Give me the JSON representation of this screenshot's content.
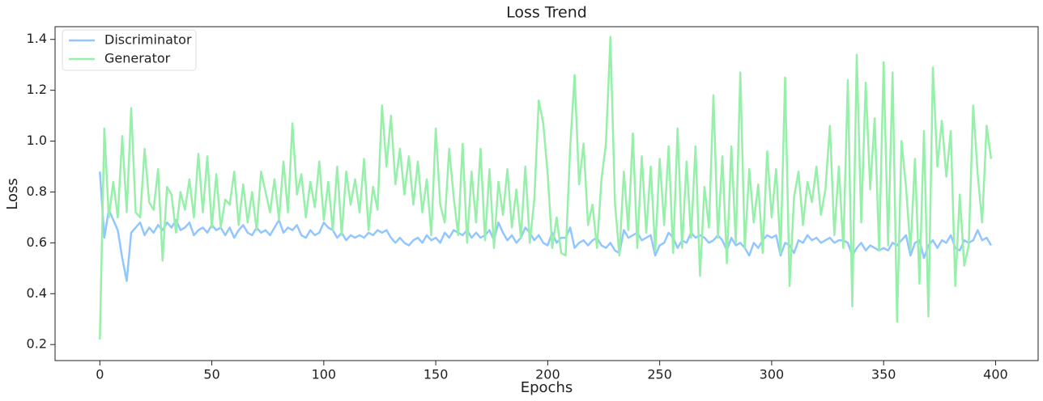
{
  "chart_data": {
    "type": "line",
    "title": "Loss Trend",
    "x_label": "Epochs",
    "y_label": "Loss",
    "x": [
      0,
      2,
      4,
      6,
      8,
      10,
      12,
      14,
      16,
      18,
      20,
      22,
      24,
      26,
      28,
      30,
      32,
      34,
      36,
      38,
      40,
      42,
      44,
      46,
      48,
      50,
      52,
      54,
      56,
      58,
      60,
      62,
      64,
      66,
      68,
      70,
      72,
      74,
      76,
      78,
      80,
      82,
      84,
      86,
      88,
      90,
      92,
      94,
      96,
      98,
      100,
      102,
      104,
      106,
      108,
      110,
      112,
      114,
      116,
      118,
      120,
      122,
      124,
      126,
      128,
      130,
      132,
      134,
      136,
      138,
      140,
      142,
      144,
      146,
      148,
      150,
      152,
      154,
      156,
      158,
      160,
      162,
      164,
      166,
      168,
      170,
      172,
      174,
      176,
      178,
      180,
      182,
      184,
      186,
      188,
      190,
      192,
      194,
      196,
      198,
      200,
      202,
      204,
      206,
      208,
      210,
      212,
      214,
      216,
      218,
      220,
      222,
      224,
      226,
      228,
      230,
      232,
      234,
      236,
      238,
      240,
      242,
      244,
      246,
      248,
      250,
      252,
      254,
      256,
      258,
      260,
      262,
      264,
      266,
      268,
      270,
      272,
      274,
      276,
      278,
      280,
      282,
      284,
      286,
      288,
      290,
      292,
      294,
      296,
      298,
      300,
      302,
      304,
      306,
      308,
      310,
      312,
      314,
      316,
      318,
      320,
      322,
      324,
      326,
      328,
      330,
      332,
      334,
      336,
      338,
      340,
      342,
      344,
      346,
      348,
      350,
      352,
      354,
      356,
      358,
      360,
      362,
      364,
      366,
      368,
      370,
      372,
      374,
      376,
      378,
      380,
      382,
      384,
      386,
      388,
      390,
      392,
      394,
      396,
      398
    ],
    "series": [
      {
        "name": "Discriminator",
        "color": "#92c6ff",
        "values": [
          0.88,
          0.62,
          0.73,
          0.69,
          0.65,
          0.54,
          0.45,
          0.64,
          0.66,
          0.68,
          0.63,
          0.66,
          0.64,
          0.67,
          0.65,
          0.68,
          0.66,
          0.69,
          0.65,
          0.66,
          0.68,
          0.63,
          0.65,
          0.66,
          0.64,
          0.67,
          0.65,
          0.66,
          0.63,
          0.66,
          0.62,
          0.65,
          0.67,
          0.64,
          0.63,
          0.66,
          0.64,
          0.65,
          0.63,
          0.66,
          0.69,
          0.64,
          0.66,
          0.65,
          0.67,
          0.63,
          0.62,
          0.65,
          0.63,
          0.64,
          0.68,
          0.66,
          0.65,
          0.62,
          0.64,
          0.61,
          0.63,
          0.62,
          0.63,
          0.62,
          0.64,
          0.63,
          0.65,
          0.64,
          0.65,
          0.62,
          0.6,
          0.62,
          0.6,
          0.59,
          0.61,
          0.62,
          0.6,
          0.63,
          0.61,
          0.62,
          0.6,
          0.64,
          0.62,
          0.65,
          0.64,
          0.63,
          0.65,
          0.62,
          0.64,
          0.62,
          0.63,
          0.65,
          0.61,
          0.68,
          0.64,
          0.61,
          0.63,
          0.6,
          0.62,
          0.66,
          0.64,
          0.61,
          0.63,
          0.6,
          0.59,
          0.64,
          0.6,
          0.62,
          0.62,
          0.66,
          0.58,
          0.6,
          0.61,
          0.59,
          0.61,
          0.62,
          0.59,
          0.58,
          0.6,
          0.57,
          0.56,
          0.65,
          0.62,
          0.63,
          0.64,
          0.61,
          0.62,
          0.63,
          0.55,
          0.59,
          0.6,
          0.64,
          0.62,
          0.58,
          0.61,
          0.6,
          0.64,
          0.62,
          0.63,
          0.62,
          0.6,
          0.61,
          0.63,
          0.61,
          0.57,
          0.62,
          0.59,
          0.6,
          0.58,
          0.55,
          0.6,
          0.58,
          0.61,
          0.63,
          0.62,
          0.63,
          0.55,
          0.6,
          0.59,
          0.56,
          0.61,
          0.6,
          0.63,
          0.61,
          0.62,
          0.6,
          0.61,
          0.62,
          0.6,
          0.61,
          0.61,
          0.6,
          0.55,
          0.58,
          0.6,
          0.57,
          0.59,
          0.58,
          0.57,
          0.58,
          0.57,
          0.6,
          0.59,
          0.61,
          0.63,
          0.55,
          0.6,
          0.61,
          0.54,
          0.59,
          0.61,
          0.58,
          0.61,
          0.6,
          0.63,
          0.58,
          0.57,
          0.61,
          0.6,
          0.61,
          0.65,
          0.61,
          0.62,
          0.59
        ]
      },
      {
        "name": "Generator",
        "color": "#97f0aa",
        "values": [
          0.22,
          1.05,
          0.7,
          0.84,
          0.7,
          1.02,
          0.72,
          1.13,
          0.72,
          0.7,
          0.97,
          0.76,
          0.73,
          0.89,
          0.53,
          0.82,
          0.79,
          0.64,
          0.8,
          0.73,
          0.85,
          0.7,
          0.95,
          0.72,
          0.94,
          0.66,
          0.87,
          0.66,
          0.77,
          0.75,
          0.88,
          0.67,
          0.83,
          0.68,
          0.8,
          0.65,
          0.88,
          0.8,
          0.72,
          0.85,
          0.69,
          0.92,
          0.72,
          1.07,
          0.79,
          0.87,
          0.7,
          0.84,
          0.74,
          0.92,
          0.69,
          0.84,
          0.65,
          0.9,
          0.63,
          0.88,
          0.75,
          0.85,
          0.72,
          0.93,
          0.65,
          0.82,
          0.73,
          1.14,
          0.9,
          1.1,
          0.83,
          0.97,
          0.79,
          0.94,
          0.75,
          0.92,
          0.72,
          0.85,
          0.63,
          1.05,
          0.75,
          0.68,
          0.97,
          0.78,
          0.63,
          0.99,
          0.6,
          0.88,
          0.68,
          0.97,
          0.61,
          0.89,
          0.58,
          0.84,
          0.71,
          0.89,
          0.66,
          0.81,
          0.62,
          0.9,
          0.6,
          0.77,
          1.16,
          1.07,
          0.87,
          0.58,
          0.7,
          0.56,
          0.55,
          0.97,
          1.26,
          0.83,
          0.99,
          0.67,
          0.75,
          0.58,
          0.85,
          0.99,
          1.41,
          0.76,
          0.55,
          0.88,
          0.65,
          1.03,
          0.58,
          0.94,
          0.64,
          0.9,
          0.57,
          0.93,
          0.67,
          0.98,
          0.56,
          1.05,
          0.58,
          0.92,
          0.62,
          0.98,
          0.47,
          0.82,
          0.66,
          1.18,
          0.62,
          0.94,
          0.52,
          0.98,
          0.6,
          1.27,
          0.58,
          0.89,
          0.68,
          0.83,
          0.56,
          0.96,
          0.7,
          0.89,
          0.56,
          1.25,
          0.43,
          0.78,
          0.88,
          0.67,
          0.84,
          0.76,
          0.9,
          0.71,
          0.81,
          1.06,
          0.63,
          0.9,
          0.58,
          1.24,
          0.35,
          1.34,
          0.68,
          1.23,
          0.81,
          1.09,
          0.57,
          1.31,
          0.59,
          1.27,
          0.29,
          1.0,
          0.82,
          0.57,
          0.93,
          0.44,
          1.04,
          0.31,
          1.29,
          0.9,
          1.08,
          0.86,
          1.04,
          0.43,
          0.79,
          0.51,
          0.59,
          1.14,
          0.87,
          0.68,
          1.06,
          0.93
        ]
      }
    ],
    "xlim": [
      -20,
      419
    ],
    "ylim": [
      0.137,
      1.45
    ],
    "xticks": [
      0,
      50,
      100,
      150,
      200,
      250,
      300,
      350,
      400
    ],
    "yticks": [
      0.2,
      0.4,
      0.6,
      0.8,
      {
        "value": 1,
        "label": "1.0"
      },
      1.2,
      1.4
    ],
    "grid": false,
    "legend": "upper left"
  }
}
